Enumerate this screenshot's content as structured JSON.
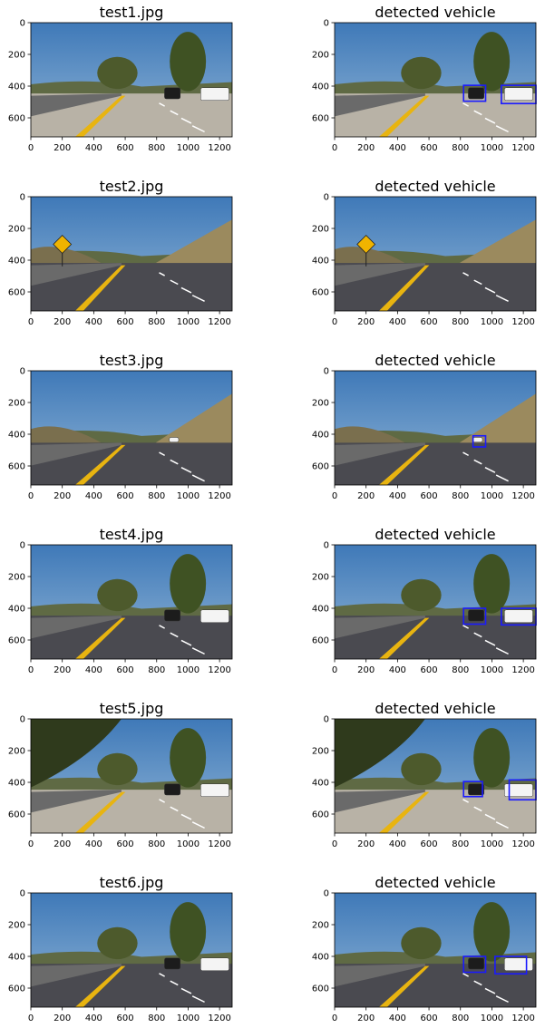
{
  "figure": {
    "x_ticks": [
      0,
      200,
      400,
      600,
      800,
      1000,
      1200
    ],
    "y_ticks": [
      0,
      200,
      400,
      600
    ],
    "xlim": [
      0,
      1280
    ],
    "ylim": [
      720,
      0
    ],
    "colors": {
      "box": "#1a1aff",
      "sky_top": "#3f79b8",
      "sky_bottom": "#8fb4d6",
      "road": "#4a4a50",
      "concrete": "#b8b2a6",
      "lane_yellow": "#e8b410",
      "lane_white": "#ffffff",
      "foliage": "#4d5a2c",
      "hill": "#9b8a5e",
      "barrier": "#6a6a6a"
    }
  },
  "chart_data": [
    {
      "type": "image",
      "title": "test1.jpg",
      "scene": "concrete-trees",
      "boxes": []
    },
    {
      "type": "image",
      "title": "detected vehicle",
      "scene": "concrete-trees",
      "boxes": [
        {
          "x1": 820,
          "y1": 395,
          "x2": 960,
          "y2": 495
        },
        {
          "x1": 1060,
          "y1": 395,
          "x2": 1280,
          "y2": 510
        }
      ]
    },
    {
      "type": "image",
      "title": "test2.jpg",
      "scene": "road-sign",
      "boxes": []
    },
    {
      "type": "image",
      "title": "detected vehicle",
      "scene": "road-sign",
      "boxes": []
    },
    {
      "type": "image",
      "title": "test3.jpg",
      "scene": "open-road",
      "boxes": []
    },
    {
      "type": "image",
      "title": "detected vehicle",
      "scene": "open-road",
      "boxes": [
        {
          "x1": 880,
          "y1": 410,
          "x2": 960,
          "y2": 480
        }
      ]
    },
    {
      "type": "image",
      "title": "test4.jpg",
      "scene": "asphalt-trees",
      "boxes": []
    },
    {
      "type": "image",
      "title": "detected vehicle",
      "scene": "asphalt-trees",
      "boxes": [
        {
          "x1": 820,
          "y1": 400,
          "x2": 960,
          "y2": 500
        },
        {
          "x1": 1060,
          "y1": 400,
          "x2": 1280,
          "y2": 505
        }
      ]
    },
    {
      "type": "image",
      "title": "test5.jpg",
      "scene": "shade-trees",
      "boxes": []
    },
    {
      "type": "image",
      "title": "detected vehicle",
      "scene": "shade-trees",
      "boxes": [
        {
          "x1": 820,
          "y1": 395,
          "x2": 940,
          "y2": 490
        },
        {
          "x1": 1110,
          "y1": 385,
          "x2": 1280,
          "y2": 510
        }
      ]
    },
    {
      "type": "image",
      "title": "test6.jpg",
      "scene": "asphalt-trees",
      "boxes": []
    },
    {
      "type": "image",
      "title": "detected vehicle",
      "scene": "asphalt-trees",
      "boxes": [
        {
          "x1": 820,
          "y1": 400,
          "x2": 960,
          "y2": 500
        },
        {
          "x1": 1020,
          "y1": 400,
          "x2": 1220,
          "y2": 510
        }
      ]
    }
  ]
}
